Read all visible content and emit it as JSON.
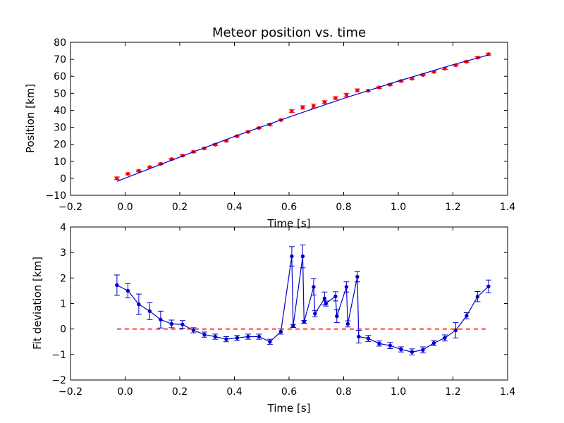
{
  "chart_data": [
    {
      "type": "scatter",
      "title": "Meteor position vs. time",
      "xlabel": "Time [s]",
      "ylabel": "Position [km]",
      "xlim": [
        -0.2,
        1.4
      ],
      "ylim": [
        -10,
        80
      ],
      "xticks": [
        "−0.2",
        "0.0",
        "0.2",
        "0.4",
        "0.6",
        "0.8",
        "1.0",
        "1.2",
        "1.4"
      ],
      "yticks": [
        "−10",
        "0",
        "10",
        "20",
        "30",
        "40",
        "50",
        "60",
        "70",
        "80"
      ],
      "grid": false,
      "colors": {
        "data": "#ff0000",
        "fit": "#0000cc"
      },
      "series": [
        {
          "kind": "points_with_errorbars",
          "x": [
            -0.03,
            0.01,
            0.05,
            0.09,
            0.13,
            0.17,
            0.21,
            0.25,
            0.29,
            0.33,
            0.37,
            0.41,
            0.45,
            0.49,
            0.53,
            0.57,
            0.61,
            0.65,
            0.69,
            0.73,
            0.77,
            0.81,
            0.85,
            0.89,
            0.93,
            0.97,
            1.01,
            1.05,
            1.09,
            1.13,
            1.17,
            1.21,
            1.25,
            1.29,
            1.33
          ],
          "y": [
            0.0,
            2.6,
            4.4,
            6.6,
            8.5,
            11.3,
            13.3,
            15.6,
            17.6,
            19.8,
            22.0,
            24.8,
            27.3,
            29.6,
            31.6,
            34.3,
            39.5,
            41.7,
            42.5,
            44.8,
            47.2,
            49.1,
            51.7,
            51.5,
            53.4,
            55.1,
            57.2,
            58.6,
            60.8,
            62.6,
            64.5,
            66.5,
            68.6,
            71.0,
            73.0
          ],
          "err": [
            0.8,
            0.6,
            0.5,
            0.5,
            0.5,
            0.5,
            0.5,
            0.5,
            0.5,
            0.5,
            0.5,
            0.5,
            0.5,
            0.5,
            0.5,
            0.5,
            0.8,
            1.0,
            1.2,
            0.8,
            0.8,
            0.9,
            0.9,
            0.5,
            0.5,
            0.5,
            0.5,
            0.5,
            0.5,
            0.5,
            0.5,
            0.5,
            0.5,
            0.5,
            0.6
          ]
        },
        {
          "kind": "line",
          "x": [
            -0.03,
            0.2,
            0.4,
            0.6,
            0.8,
            1.0,
            1.2,
            1.33
          ],
          "y": [
            -1.8,
            12.5,
            24.6,
            36.0,
            47.0,
            57.2,
            66.8,
            72.5
          ]
        }
      ]
    },
    {
      "type": "line",
      "title": "",
      "xlabel": "Time [s]",
      "ylabel": "Fit deviation [km]",
      "xlim": [
        -0.2,
        1.4
      ],
      "ylim": [
        -2,
        4
      ],
      "xticks": [
        "−0.2",
        "0.0",
        "0.2",
        "0.4",
        "0.6",
        "0.8",
        "1.0",
        "1.2",
        "1.4"
      ],
      "yticks": [
        "−2",
        "−1",
        "0",
        "1",
        "2",
        "3",
        "4"
      ],
      "grid": false,
      "colors": {
        "data": "#0000cc",
        "reference": "#ff0000"
      },
      "series": [
        {
          "kind": "line_with_errorbars",
          "x": [
            -0.03,
            0.01,
            0.05,
            0.09,
            0.13,
            0.17,
            0.21,
            0.25,
            0.29,
            0.33,
            0.37,
            0.41,
            0.45,
            0.49,
            0.53,
            0.57,
            0.61,
            0.615,
            0.65,
            0.655,
            0.69,
            0.695,
            0.73,
            0.735,
            0.77,
            0.775,
            0.81,
            0.815,
            0.85,
            0.855,
            0.89,
            0.93,
            0.97,
            1.01,
            1.05,
            1.09,
            1.13,
            1.17,
            1.21,
            1.25,
            1.29,
            1.33
          ],
          "y": [
            1.72,
            1.5,
            0.97,
            0.7,
            0.37,
            0.2,
            0.18,
            -0.05,
            -0.22,
            -0.3,
            -0.4,
            -0.35,
            -0.3,
            -0.3,
            -0.5,
            -0.1,
            2.85,
            0.12,
            2.85,
            0.28,
            1.65,
            0.6,
            1.2,
            1.0,
            1.28,
            0.5,
            1.65,
            0.2,
            2.05,
            -0.3,
            -0.37,
            -0.57,
            -0.65,
            -0.8,
            -0.9,
            -0.82,
            -0.55,
            -0.35,
            -0.05,
            0.52,
            1.27,
            1.67
          ],
          "err": [
            0.4,
            0.28,
            0.4,
            0.33,
            0.33,
            0.15,
            0.15,
            0.1,
            0.1,
            0.1,
            0.1,
            0.1,
            0.1,
            0.1,
            0.1,
            0.1,
            0.38,
            0.06,
            0.45,
            0.06,
            0.32,
            0.12,
            0.25,
            0.1,
            0.18,
            0.25,
            0.2,
            0.12,
            0.2,
            0.25,
            0.12,
            0.1,
            0.12,
            0.1,
            0.12,
            0.12,
            0.1,
            0.12,
            0.3,
            0.12,
            0.2,
            0.25
          ]
        },
        {
          "kind": "reference_line",
          "x": [
            -0.03,
            1.33
          ],
          "y": [
            0,
            0
          ]
        }
      ]
    }
  ]
}
